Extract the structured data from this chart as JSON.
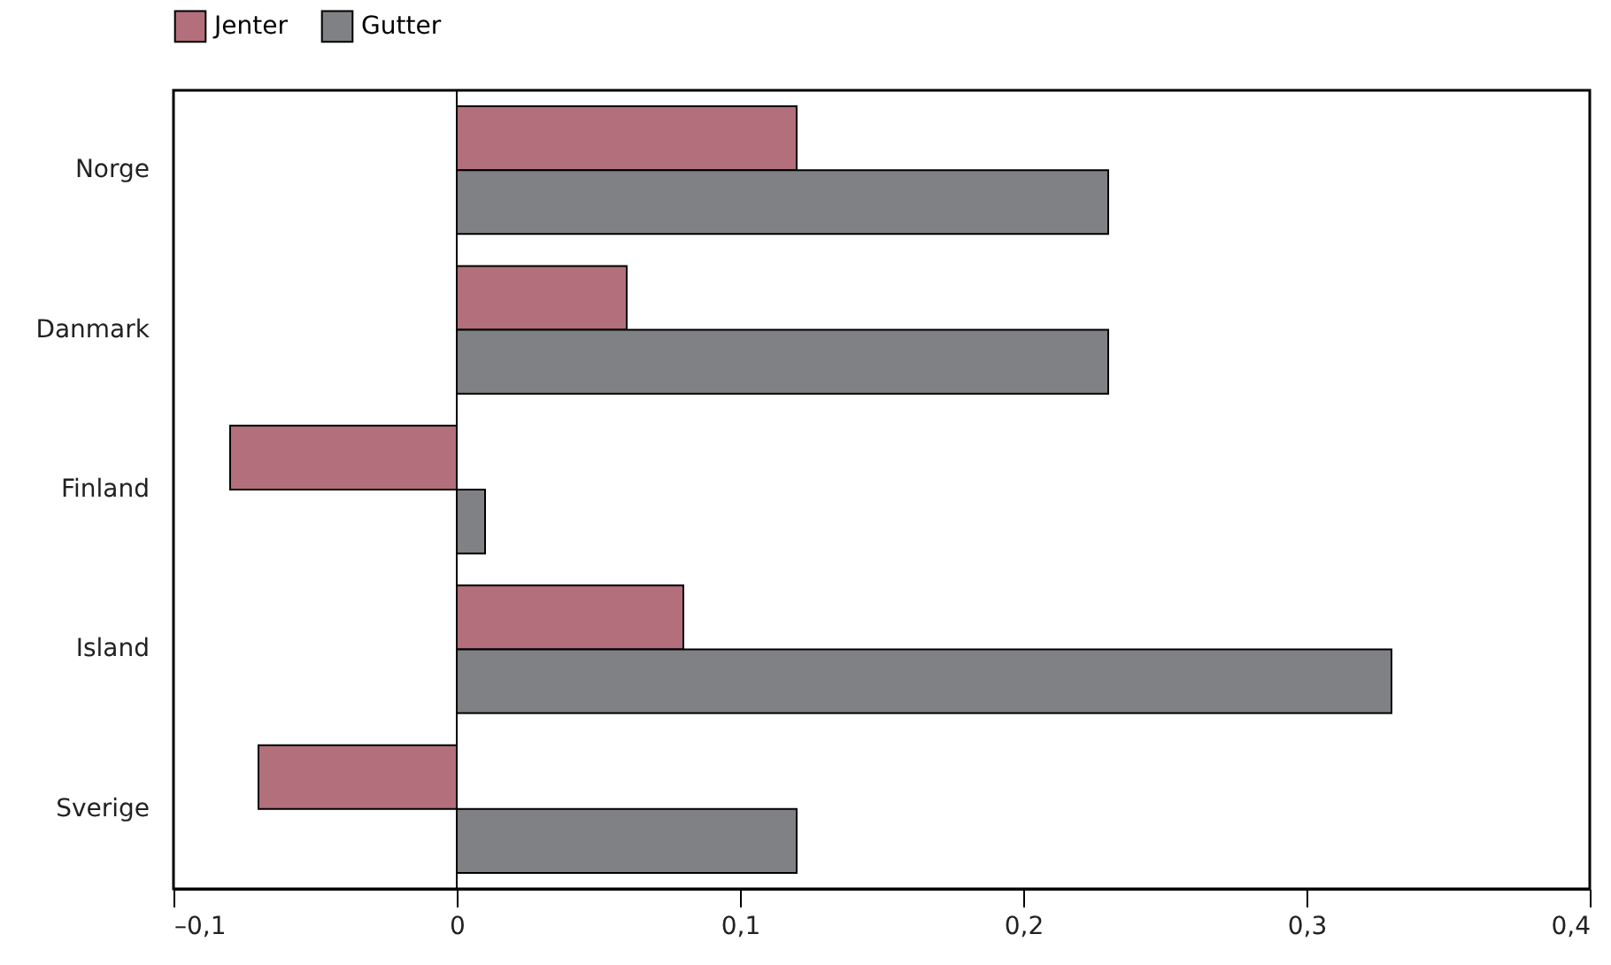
{
  "chart_data": {
    "type": "bar",
    "orientation": "horizontal",
    "categories": [
      "Norge",
      "Danmark",
      "Finland",
      "Island",
      "Sverige"
    ],
    "series": [
      {
        "name": "Jenter",
        "color": "#b36f7c",
        "values": [
          0.12,
          0.06,
          -0.08,
          0.08,
          -0.07
        ]
      },
      {
        "name": "Gutter",
        "color": "#808184",
        "values": [
          0.23,
          0.23,
          0.01,
          0.33,
          0.12
        ]
      }
    ],
    "xlim": [
      -0.1,
      0.4
    ],
    "xticks": [
      {
        "value": -0.1,
        "label": "–0,1"
      },
      0,
      {
        "value": 0.1,
        "label": "0,1"
      },
      {
        "value": 0.2,
        "label": "0,2"
      },
      {
        "value": 0.3,
        "label": "0,3"
      },
      {
        "value": 0.4,
        "label": "0,4"
      }
    ],
    "ref_lines": [
      {
        "axis": "x",
        "value": 0
      }
    ],
    "legend": "top left",
    "grid": false
  }
}
